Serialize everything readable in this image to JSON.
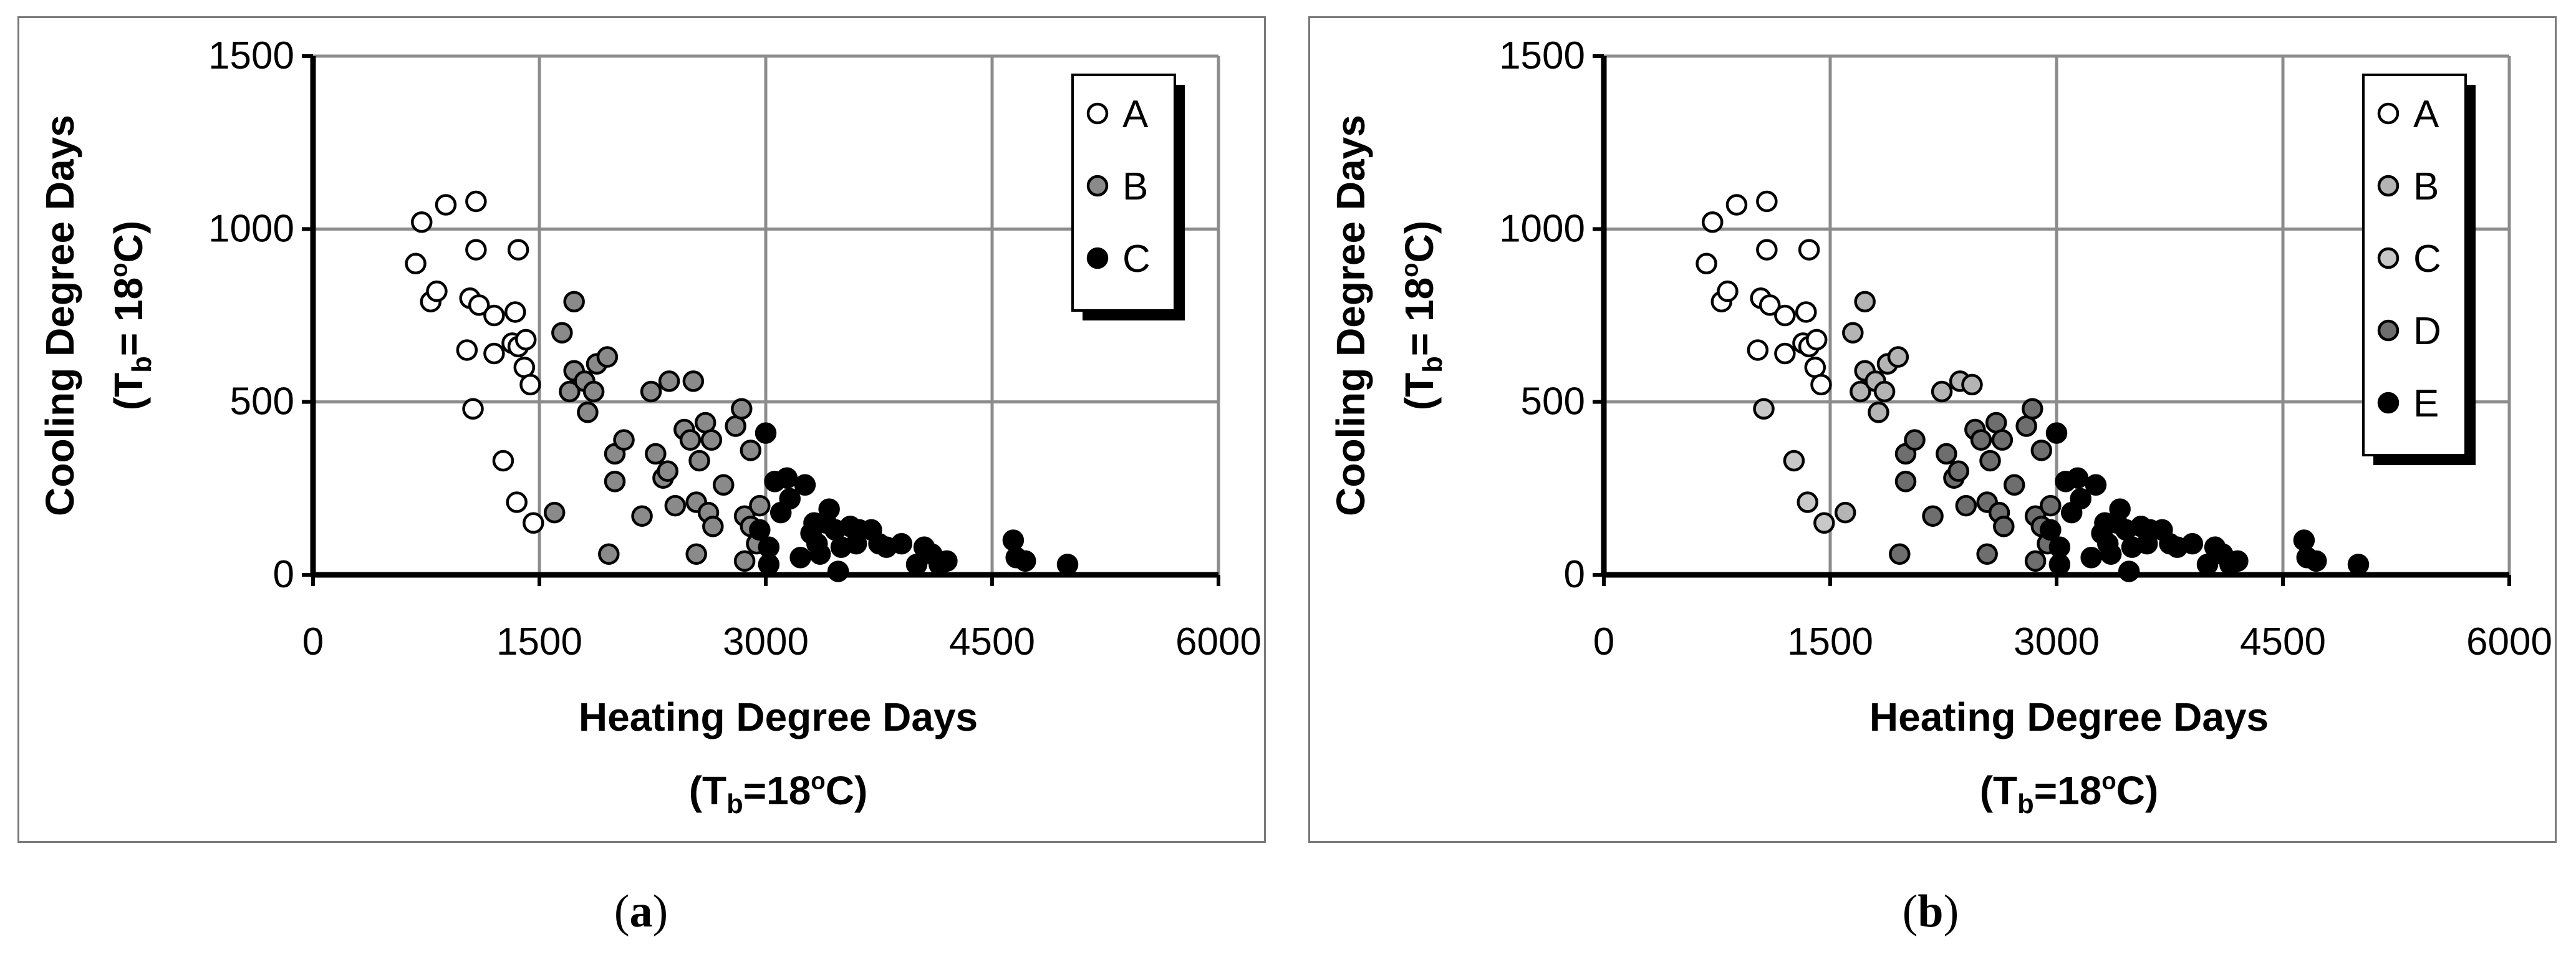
{
  "figure": {
    "panels": [
      {
        "label": "a"
      },
      {
        "label": "b"
      }
    ]
  },
  "colors": {
    "A": "#ffffff",
    "B_a": "#8a8a8a",
    "C_a": "#000000",
    "B_b": "#b4b4b4",
    "C_b": "#c8c8c8",
    "D_b": "#6e6e6e",
    "E_b": "#000000",
    "grid": "#8c8c8c"
  },
  "chart_data": [
    {
      "type": "scatter",
      "xlabel": "Heating Degree Days",
      "xlabel_sub": "(Tb=18oC)",
      "ylabel": "Cooling Degree Days",
      "ylabel_sub": "(Tb= 18oC)",
      "xlim": [
        0,
        6000
      ],
      "ylim": [
        0,
        1500
      ],
      "xticks": [
        0,
        1500,
        3000,
        4500,
        6000
      ],
      "yticks": [
        0,
        500,
        1000,
        1500
      ],
      "grid": true,
      "legend_position": "top-right",
      "series": [
        {
          "name": "A",
          "color": "#ffffff",
          "points": [
            [
              680,
              900
            ],
            [
              720,
              1020
            ],
            [
              780,
              790
            ],
            [
              820,
              820
            ],
            [
              880,
              1070
            ],
            [
              1020,
              650
            ],
            [
              1040,
              800
            ],
            [
              1060,
              480
            ],
            [
              1080,
              1080
            ],
            [
              1080,
              940
            ],
            [
              1100,
              780
            ],
            [
              1200,
              640
            ],
            [
              1200,
              750
            ],
            [
              1260,
              330
            ],
            [
              1320,
              670
            ],
            [
              1340,
              760
            ],
            [
              1350,
              210
            ],
            [
              1360,
              660
            ],
            [
              1360,
              940
            ],
            [
              1400,
              600
            ],
            [
              1410,
              680
            ],
            [
              1440,
              550
            ],
            [
              1460,
              150
            ]
          ]
        },
        {
          "name": "B",
          "color": "#8a8a8a",
          "points": [
            [
              1600,
              180
            ],
            [
              1650,
              700
            ],
            [
              1700,
              530
            ],
            [
              1730,
              590
            ],
            [
              1730,
              790
            ],
            [
              1800,
              560
            ],
            [
              1820,
              470
            ],
            [
              1860,
              530
            ],
            [
              1880,
              610
            ],
            [
              1950,
              630
            ],
            [
              1960,
              60
            ],
            [
              2000,
              270
            ],
            [
              2000,
              350
            ],
            [
              2060,
              390
            ],
            [
              2180,
              170
            ],
            [
              2240,
              530
            ],
            [
              2270,
              350
            ],
            [
              2320,
              280
            ],
            [
              2350,
              300
            ],
            [
              2360,
              560
            ],
            [
              2400,
              200
            ],
            [
              2460,
              420
            ],
            [
              2500,
              390
            ],
            [
              2520,
              560
            ],
            [
              2540,
              210
            ],
            [
              2540,
              60
            ],
            [
              2560,
              330
            ],
            [
              2600,
              440
            ],
            [
              2620,
              180
            ],
            [
              2640,
              390
            ],
            [
              2650,
              140
            ],
            [
              2720,
              260
            ],
            [
              2800,
              430
            ],
            [
              2840,
              480
            ],
            [
              2860,
              170
            ],
            [
              2860,
              40
            ],
            [
              2900,
              140
            ],
            [
              2900,
              360
            ],
            [
              2940,
              90
            ],
            [
              2960,
              200
            ]
          ]
        },
        {
          "name": "C",
          "color": "#000000",
          "points": [
            [
              2960,
              130
            ],
            [
              3000,
              410
            ],
            [
              3020,
              80
            ],
            [
              3020,
              30
            ],
            [
              3060,
              270
            ],
            [
              3100,
              180
            ],
            [
              3140,
              280
            ],
            [
              3160,
              220
            ],
            [
              3230,
              50
            ],
            [
              3260,
              260
            ],
            [
              3300,
              120
            ],
            [
              3320,
              150
            ],
            [
              3340,
              90
            ],
            [
              3360,
              60
            ],
            [
              3400,
              150
            ],
            [
              3420,
              190
            ],
            [
              3460,
              130
            ],
            [
              3480,
              10
            ],
            [
              3500,
              80
            ],
            [
              3560,
              140
            ],
            [
              3600,
              90
            ],
            [
              3620,
              130
            ],
            [
              3700,
              130
            ],
            [
              3750,
              90
            ],
            [
              3800,
              80
            ],
            [
              3900,
              90
            ],
            [
              4000,
              30
            ],
            [
              4050,
              80
            ],
            [
              4100,
              60
            ],
            [
              4150,
              30
            ],
            [
              4200,
              40
            ],
            [
              4640,
              100
            ],
            [
              4660,
              50
            ],
            [
              4720,
              40
            ],
            [
              5000,
              30
            ]
          ]
        }
      ]
    },
    {
      "type": "scatter",
      "xlabel": "Heating Degree Days",
      "xlabel_sub": "(Tb=18oC)",
      "ylabel": "Cooling Degree Days",
      "ylabel_sub": "(Tb= 18oC)",
      "xlim": [
        0,
        6000
      ],
      "ylim": [
        0,
        1500
      ],
      "xticks": [
        0,
        1500,
        3000,
        4500,
        6000
      ],
      "yticks": [
        0,
        500,
        1000,
        1500
      ],
      "grid": true,
      "legend_position": "top-right",
      "series": [
        {
          "name": "A",
          "color": "#ffffff",
          "points": [
            [
              680,
              900
            ],
            [
              720,
              1020
            ],
            [
              780,
              790
            ],
            [
              820,
              820
            ],
            [
              880,
              1070
            ],
            [
              1020,
              650
            ],
            [
              1040,
              800
            ],
            [
              1080,
              1080
            ],
            [
              1080,
              940
            ],
            [
              1100,
              780
            ],
            [
              1200,
              640
            ],
            [
              1200,
              750
            ],
            [
              1320,
              670
            ],
            [
              1340,
              760
            ],
            [
              1360,
              660
            ],
            [
              1360,
              940
            ],
            [
              1400,
              600
            ],
            [
              1410,
              680
            ],
            [
              1440,
              550
            ]
          ]
        },
        {
          "name": "B",
          "color": "#b4b4b4",
          "points": [
            [
              1600,
              180
            ],
            [
              1650,
              700
            ],
            [
              1700,
              530
            ],
            [
              1730,
              590
            ],
            [
              1730,
              790
            ],
            [
              1800,
              560
            ],
            [
              1820,
              470
            ],
            [
              1860,
              530
            ],
            [
              1880,
              610
            ],
            [
              1950,
              630
            ],
            [
              2240,
              530
            ],
            [
              2360,
              560
            ],
            [
              2440,
              550
            ]
          ]
        },
        {
          "name": "C",
          "color": "#c8c8c8",
          "points": [
            [
              1060,
              480
            ],
            [
              1260,
              330
            ],
            [
              1350,
              210
            ],
            [
              1460,
              150
            ]
          ]
        },
        {
          "name": "D",
          "color": "#6e6e6e",
          "points": [
            [
              1960,
              60
            ],
            [
              2000,
              270
            ],
            [
              2000,
              350
            ],
            [
              2060,
              390
            ],
            [
              2180,
              170
            ],
            [
              2270,
              350
            ],
            [
              2320,
              280
            ],
            [
              2350,
              300
            ],
            [
              2400,
              200
            ],
            [
              2460,
              420
            ],
            [
              2500,
              390
            ],
            [
              2540,
              210
            ],
            [
              2540,
              60
            ],
            [
              2560,
              330
            ],
            [
              2600,
              440
            ],
            [
              2620,
              180
            ],
            [
              2640,
              390
            ],
            [
              2650,
              140
            ],
            [
              2720,
              260
            ],
            [
              2800,
              430
            ],
            [
              2840,
              480
            ],
            [
              2860,
              170
            ],
            [
              2860,
              40
            ],
            [
              2900,
              140
            ],
            [
              2900,
              360
            ],
            [
              2940,
              90
            ],
            [
              2960,
              200
            ]
          ]
        },
        {
          "name": "E",
          "color": "#000000",
          "points": [
            [
              2960,
              130
            ],
            [
              3000,
              410
            ],
            [
              3020,
              80
            ],
            [
              3020,
              30
            ],
            [
              3060,
              270
            ],
            [
              3100,
              180
            ],
            [
              3140,
              280
            ],
            [
              3160,
              220
            ],
            [
              3230,
              50
            ],
            [
              3260,
              260
            ],
            [
              3300,
              120
            ],
            [
              3320,
              150
            ],
            [
              3340,
              90
            ],
            [
              3360,
              60
            ],
            [
              3400,
              150
            ],
            [
              3420,
              190
            ],
            [
              3460,
              130
            ],
            [
              3480,
              10
            ],
            [
              3500,
              80
            ],
            [
              3560,
              140
            ],
            [
              3600,
              90
            ],
            [
              3620,
              130
            ],
            [
              3700,
              130
            ],
            [
              3750,
              90
            ],
            [
              3800,
              80
            ],
            [
              3900,
              90
            ],
            [
              4000,
              30
            ],
            [
              4050,
              80
            ],
            [
              4100,
              60
            ],
            [
              4150,
              30
            ],
            [
              4200,
              40
            ],
            [
              4640,
              100
            ],
            [
              4660,
              50
            ],
            [
              4720,
              40
            ],
            [
              5000,
              30
            ]
          ]
        }
      ]
    }
  ]
}
